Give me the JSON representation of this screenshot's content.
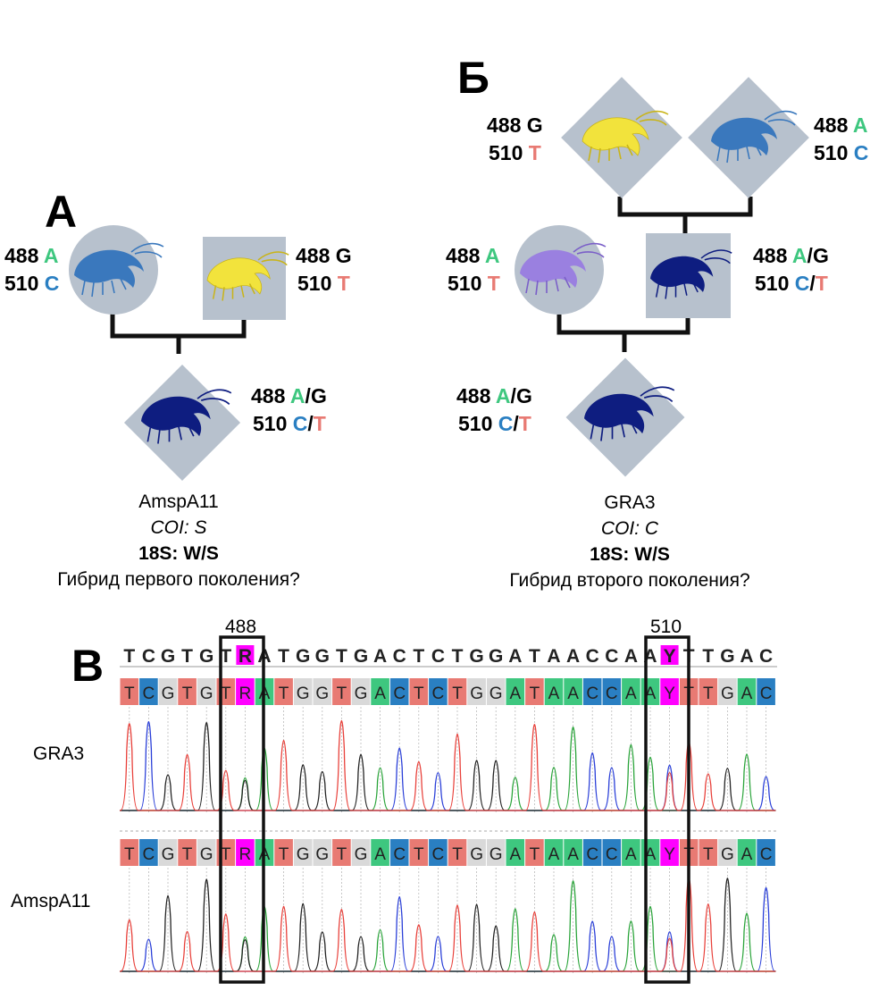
{
  "colors": {
    "node": "#b7c1cd",
    "A": "#3ec77f",
    "C": "#2a7fc2",
    "G": "#222222",
    "T": "#e87a73",
    "ambig": "#ff00ff",
    "shrimp_blue": "#3a78bd",
    "shrimp_yellow": "#f2e33c",
    "shrimp_navy": "#0e1d80",
    "shrimp_purple": "#9a80e0"
  },
  "panel_a": {
    "label": "A",
    "left_parent": {
      "shape": "circle",
      "shrimp": "blue",
      "pos1": "488",
      "base1": "A",
      "pos2": "510",
      "base2": "C"
    },
    "right_parent": {
      "shape": "square",
      "shrimp": "yellow",
      "pos1": "488",
      "base1": "G",
      "pos2": "510",
      "base2": "T"
    },
    "child": {
      "shape": "diamond",
      "shrimp": "navy",
      "pos1": "488",
      "base1a": "A",
      "sep": "/",
      "base1b": "G",
      "pos2": "510",
      "base2a": "C",
      "base2b": "T"
    },
    "caption": {
      "sample": "AmspA11",
      "coi": "COI: S",
      "s18": "18S: W/S",
      "question": "Гибрид первого поколения?"
    }
  },
  "panel_b": {
    "label": "Б",
    "gp_left": {
      "shape": "diamond",
      "shrimp": "yellow",
      "pos1": "488",
      "base1": "G",
      "pos2": "510",
      "base2": "T"
    },
    "gp_right": {
      "shape": "diamond",
      "shrimp": "blue",
      "pos1": "488",
      "base1": "A",
      "pos2": "510",
      "base2": "C"
    },
    "p_left": {
      "shape": "circle",
      "shrimp": "purple",
      "pos1": "488",
      "base1": "A",
      "pos2": "510",
      "base2": "T"
    },
    "p_right": {
      "shape": "square",
      "shrimp": "navy",
      "pos1": "488",
      "base1a": "A",
      "base1b": "G",
      "pos2": "510",
      "base2a": "C",
      "base2b": "T"
    },
    "child": {
      "shape": "diamond",
      "shrimp": "navy",
      "pos1": "488",
      "base1a": "A",
      "base1b": "G",
      "pos2": "510",
      "base2a": "C",
      "base2b": "T"
    },
    "caption": {
      "sample": "GRA3",
      "coi": "COI: C",
      "s18": "18S: W/S",
      "question": "Гибрид второго поколения?"
    }
  },
  "panel_v": {
    "label": "В",
    "pos_left": "488",
    "pos_right": "510",
    "consensus": [
      "T",
      "C",
      "G",
      "T",
      "G",
      "T",
      "R",
      "A",
      "T",
      "G",
      "G",
      "T",
      "G",
      "A",
      "C",
      "T",
      "C",
      "T",
      "G",
      "G",
      "A",
      "T",
      "A",
      "A",
      "C",
      "C",
      "A",
      "A",
      "Y",
      "T",
      "T",
      "G",
      "A",
      "C"
    ],
    "tracks": [
      {
        "name": "GRA3"
      },
      {
        "name": "AmspA11"
      }
    ]
  }
}
